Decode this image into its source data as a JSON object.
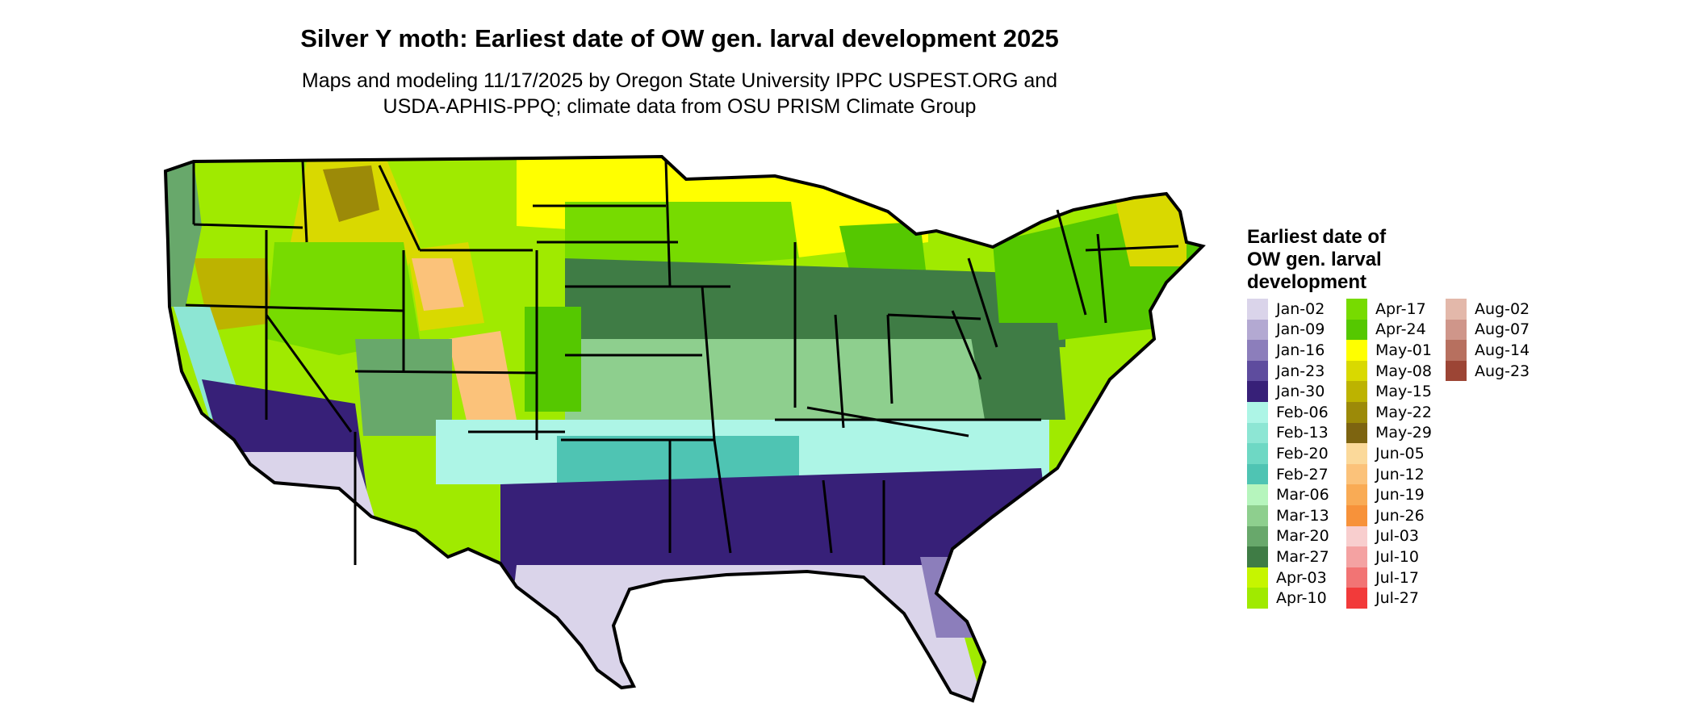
{
  "title": "Silver Y moth: Earliest date of OW gen. larval development 2025",
  "subtitle_lines": [
    "Maps and modeling 11/17/2025 by Oregon State University IPPC USPEST.ORG and",
    "USDA-APHIS-PPQ; climate data from OSU PRISM Climate Group"
  ],
  "legend": {
    "title": "Earliest date of OW gen. larval development",
    "columns": [
      [
        {
          "label": "Jan-02",
          "color": "#dad4ea"
        },
        {
          "label": "Jan-09",
          "color": "#b3a9d2"
        },
        {
          "label": "Jan-16",
          "color": "#8c7ebb"
        },
        {
          "label": "Jan-23",
          "color": "#5e4c9e"
        },
        {
          "label": "Jan-30",
          "color": "#372078"
        },
        {
          "label": "Feb-06",
          "color": "#adf5e6"
        },
        {
          "label": "Feb-13",
          "color": "#8de6d4"
        },
        {
          "label": "Feb-20",
          "color": "#6ed8c4"
        },
        {
          "label": "Feb-27",
          "color": "#4fc4b3"
        },
        {
          "label": "Mar-06",
          "color": "#b6f5bd"
        },
        {
          "label": "Mar-13",
          "color": "#8ecf8e"
        },
        {
          "label": "Mar-20",
          "color": "#68a86b"
        },
        {
          "label": "Mar-27",
          "color": "#3f7c45"
        },
        {
          "label": "Apr-03",
          "color": "#c6f500"
        },
        {
          "label": "Apr-10",
          "color": "#a0ea00"
        }
      ],
      [
        {
          "label": "Apr-17",
          "color": "#77db00"
        },
        {
          "label": "Apr-24",
          "color": "#55c800"
        },
        {
          "label": "May-01",
          "color": "#ffff00"
        },
        {
          "label": "May-08",
          "color": "#d9d900"
        },
        {
          "label": "May-15",
          "color": "#bdb300"
        },
        {
          "label": "May-22",
          "color": "#9c8a08"
        },
        {
          "label": "May-29",
          "color": "#7d6410"
        },
        {
          "label": "Jun-05",
          "color": "#fbd99a"
        },
        {
          "label": "Jun-12",
          "color": "#fbc27a"
        },
        {
          "label": "Jun-19",
          "color": "#f9ab55"
        },
        {
          "label": "Jun-26",
          "color": "#f7923a"
        },
        {
          "label": "Jul-03",
          "color": "#f8cece"
        },
        {
          "label": "Jul-10",
          "color": "#f4a2a2"
        },
        {
          "label": "Jul-17",
          "color": "#f27474"
        },
        {
          "label": "Jul-27",
          "color": "#f23a3a"
        }
      ],
      [
        {
          "label": "Aug-02",
          "color": "#e3b8aa"
        },
        {
          "label": "Aug-07",
          "color": "#cf968a"
        },
        {
          "label": "Aug-14",
          "color": "#b7705f"
        },
        {
          "label": "Aug-23",
          "color": "#9c4535"
        }
      ]
    ]
  }
}
